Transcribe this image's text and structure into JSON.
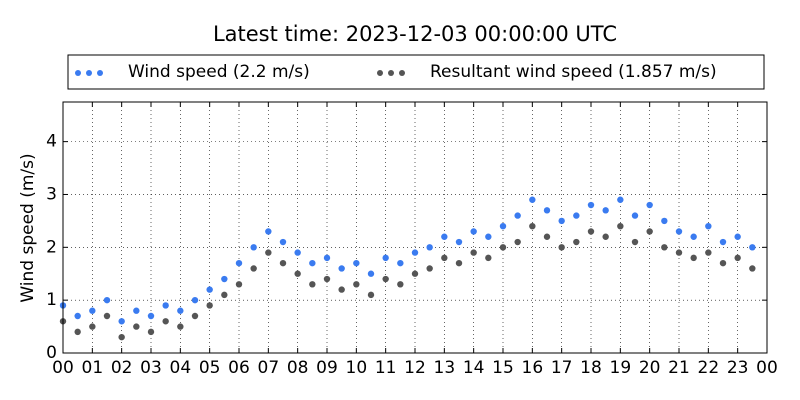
{
  "chart_data": {
    "type": "scatter",
    "title": "Latest time: 2023-12-03 00:00:00 UTC",
    "y_label": "Wind speed (m/s)",
    "x": [
      0,
      0.5,
      1,
      1.5,
      2,
      2.5,
      3,
      3.5,
      4,
      4.5,
      5,
      5.5,
      6,
      6.5,
      7,
      7.5,
      8,
      8.5,
      9,
      9.5,
      10,
      10.5,
      11,
      11.5,
      12,
      12.5,
      13,
      13.5,
      14,
      14.5,
      15,
      15.5,
      16,
      16.5,
      17,
      17.5,
      18,
      18.5,
      19,
      19.5,
      20,
      20.5,
      21,
      21.5,
      22,
      22.5,
      23,
      23.5
    ],
    "series": [
      {
        "name": "Wind speed (2.2 m/s)",
        "color": "#3a7bf0",
        "values": [
          0.9,
          0.7,
          0.8,
          1.0,
          0.6,
          0.8,
          0.7,
          0.9,
          0.8,
          1.0,
          1.2,
          1.4,
          1.7,
          2.0,
          2.3,
          2.1,
          1.9,
          1.7,
          1.8,
          1.6,
          1.7,
          1.5,
          1.8,
          1.7,
          1.9,
          2.0,
          2.2,
          2.1,
          2.3,
          2.2,
          2.4,
          2.6,
          2.9,
          2.7,
          2.5,
          2.6,
          2.8,
          2.7,
          2.9,
          2.6,
          2.8,
          2.5,
          2.3,
          2.2,
          2.4,
          2.1,
          2.2,
          2.0
        ]
      },
      {
        "name": "Resultant wind speed (1.857 m/s)",
        "color": "#555555",
        "values": [
          0.6,
          0.4,
          0.5,
          0.7,
          0.3,
          0.5,
          0.4,
          0.6,
          0.5,
          0.7,
          0.9,
          1.1,
          1.3,
          1.6,
          1.9,
          1.7,
          1.5,
          1.3,
          1.4,
          1.2,
          1.3,
          1.1,
          1.4,
          1.3,
          1.5,
          1.6,
          1.8,
          1.7,
          1.9,
          1.8,
          2.0,
          2.1,
          2.4,
          2.2,
          2.0,
          2.1,
          2.3,
          2.2,
          2.4,
          2.1,
          2.3,
          2.0,
          1.9,
          1.8,
          1.9,
          1.7,
          1.8,
          1.6
        ]
      }
    ],
    "xlim": [
      0,
      24
    ],
    "xticks": [
      {
        "value": 0,
        "label": "00"
      },
      {
        "value": 1,
        "label": "01"
      },
      {
        "value": 2,
        "label": "02"
      },
      {
        "value": 3,
        "label": "03"
      },
      {
        "value": 4,
        "label": "04"
      },
      {
        "value": 5,
        "label": "05"
      },
      {
        "value": 6,
        "label": "06"
      },
      {
        "value": 7,
        "label": "07"
      },
      {
        "value": 8,
        "label": "08"
      },
      {
        "value": 9,
        "label": "09"
      },
      {
        "value": 10,
        "label": "10"
      },
      {
        "value": 11,
        "label": "11"
      },
      {
        "value": 12,
        "label": "12"
      },
      {
        "value": 13,
        "label": "13"
      },
      {
        "value": 14,
        "label": "14"
      },
      {
        "value": 15,
        "label": "15"
      },
      {
        "value": 16,
        "label": "16"
      },
      {
        "value": 17,
        "label": "17"
      },
      {
        "value": 18,
        "label": "18"
      },
      {
        "value": 19,
        "label": "19"
      },
      {
        "value": 20,
        "label": "20"
      },
      {
        "value": 21,
        "label": "21"
      },
      {
        "value": 22,
        "label": "22"
      },
      {
        "value": 23,
        "label": "23"
      },
      {
        "value": 24,
        "label": "00"
      }
    ],
    "ylim": [
      0,
      4.75
    ],
    "yticks": [
      0,
      1,
      2,
      3,
      4
    ],
    "grid": true
  }
}
